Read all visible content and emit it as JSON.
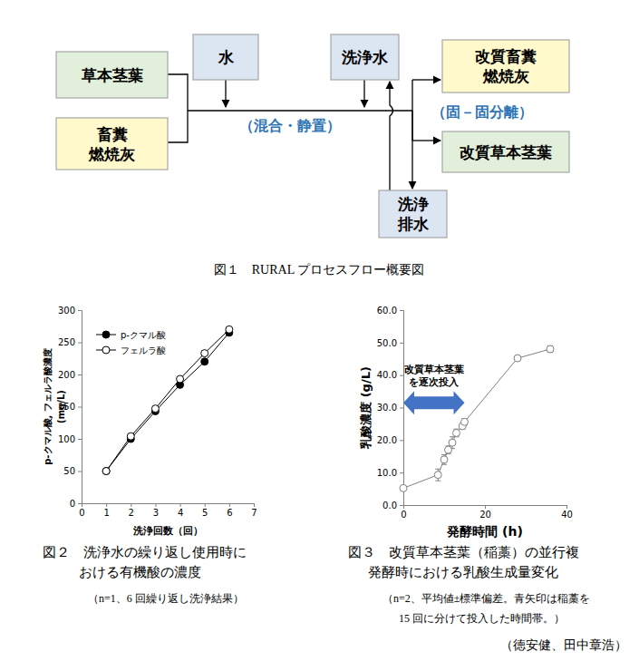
{
  "diagram": {
    "nodes": [
      {
        "label": [
          "草本茎葉"
        ],
        "color": "#e2efda"
      },
      {
        "label": [
          "畜糞",
          "燃焼灰"
        ],
        "color": "#fff9cc"
      },
      {
        "label": [
          "水"
        ],
        "color": "#dce6f2"
      },
      {
        "label": [
          "洗浄水"
        ],
        "color": "#dce6f2"
      },
      {
        "label": [
          "改質畜糞",
          "燃焼灰"
        ],
        "color": "#fff9cc"
      },
      {
        "label": [
          "改質草本茎葉"
        ],
        "color": "#e2efda"
      },
      {
        "label": [
          "洗浄",
          "排水"
        ],
        "color": "#dce6f2"
      }
    ],
    "labels": [
      "（混合・静置）",
      "（固－固分離）"
    ],
    "caption": "図１　RURAL プロセスフロー概要図"
  },
  "chart_data": [
    {
      "type": "line",
      "title": [
        "図２　洗浄水の繰り返し使用時に",
        "おける有機酸の濃度"
      ],
      "subtitle": "（n=1、6 回繰り返し洗浄結果）",
      "x_label": "洗浄回数（回）",
      "y_label": [
        "p-クマル酸, フェルラ酸濃度",
        "(mg/L)"
      ],
      "x": [
        1,
        2,
        3,
        4,
        5,
        6
      ],
      "series": [
        {
          "name": "p-クマル酸",
          "color": "#000000",
          "marker": "circle",
          "values": [
            50,
            100,
            143,
            184,
            220,
            265
          ]
        },
        {
          "name": "フェルラ酸",
          "color": "#000000",
          "marker": "open-circle",
          "values": [
            50,
            104,
            147,
            193,
            233,
            270
          ]
        }
      ],
      "xlim": [
        0,
        7
      ],
      "xticks": [
        0,
        1,
        2,
        3,
        4,
        5,
        6,
        7
      ],
      "ylim": [
        0,
        300
      ],
      "yticks": [
        0,
        50,
        100,
        150,
        200,
        250,
        300
      ],
      "legend": "upper-left",
      "grid": false
    },
    {
      "type": "line",
      "title": [
        "図３　改質草本茎葉（稲藁）の並行複",
        "発酵時における乳酸生成量変化"
      ],
      "subtitle": [
        "（n=2、平均値±標準偏差。青矢印は稲藁を",
        "15 回に分けて投入した時間帯。）"
      ],
      "x_label": "発酵時間 (h)",
      "y_label": "乳酸濃度 (g/L)",
      "x": [
        0,
        8.5,
        10,
        11,
        12,
        13,
        14.5,
        15,
        28,
        36
      ],
      "series": [
        {
          "name": "乳酸濃度",
          "color": "#808080",
          "marker": "open-circle",
          "values": [
            5.2,
            9.3,
            14.0,
            17.0,
            19.2,
            22.2,
            24.3,
            25.6,
            45.2,
            48.0
          ],
          "error": [
            0.3,
            1.8,
            1.5,
            1.2,
            1.8,
            1.2,
            1.0,
            1.0,
            0.3,
            1.0
          ]
        }
      ],
      "xlim": [
        0,
        40
      ],
      "xticks": [
        0,
        20,
        40
      ],
      "ylim": [
        0,
        60
      ],
      "yticks": [
        {
          "value": 0,
          "label": "0.0"
        },
        {
          "value": 10,
          "label": "10.0"
        },
        {
          "value": 20,
          "label": "20.0"
        },
        {
          "value": 30,
          "label": "30.0"
        },
        {
          "value": 40,
          "label": "40.0"
        },
        {
          "value": 50,
          "label": "50.0"
        },
        {
          "value": 60,
          "label": "60.0"
        }
      ],
      "annotations": [
        {
          "text": [
            "改質草本茎葉",
            "を逐次投入"
          ],
          "x": [
            0,
            15
          ],
          "y": 31.5,
          "color": "#4472c4"
        }
      ],
      "grid": false
    }
  ],
  "author": "（徳安健、田中章浩）"
}
